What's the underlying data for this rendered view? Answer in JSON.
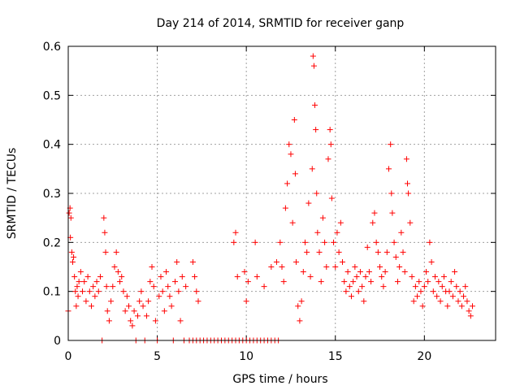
{
  "chart_data": {
    "type": "scatter",
    "title": "Day 214 of 2014, SRMTID for receiver ganp",
    "xlabel": "GPS time / hours",
    "ylabel": "SRMTID / TECUs",
    "xlim": [
      0,
      24
    ],
    "ylim": [
      0,
      0.6
    ],
    "x_ticks": [
      0,
      5,
      10,
      15,
      20
    ],
    "x_tick_labels": [
      "0",
      "5",
      "10",
      "15",
      "20"
    ],
    "y_ticks": [
      0,
      0.1,
      0.2,
      0.3,
      0.4,
      0.5,
      0.6
    ],
    "y_tick_labels": [
      "0",
      "0.1",
      "0.2",
      "0.3",
      "0.4",
      "0.5",
      "0.6"
    ],
    "grid": true,
    "marker": "+",
    "color": "#ff0000",
    "series": [
      {
        "name": "SRMTID",
        "points": [
          [
            0.0,
            0.06
          ],
          [
            0.05,
            0.26
          ],
          [
            0.1,
            0.27
          ],
          [
            0.12,
            0.21
          ],
          [
            0.15,
            0.25
          ],
          [
            0.2,
            0.18
          ],
          [
            0.25,
            0.16
          ],
          [
            0.3,
            0.17
          ],
          [
            0.35,
            0.13
          ],
          [
            0.4,
            0.1
          ],
          [
            0.45,
            0.07
          ],
          [
            0.5,
            0.11
          ],
          [
            0.55,
            0.09
          ],
          [
            0.6,
            0.12
          ],
          [
            0.7,
            0.14
          ],
          [
            0.8,
            0.1
          ],
          [
            0.9,
            0.12
          ],
          [
            1.0,
            0.08
          ],
          [
            1.1,
            0.13
          ],
          [
            1.2,
            0.1
          ],
          [
            1.3,
            0.07
          ],
          [
            1.4,
            0.11
          ],
          [
            1.5,
            0.09
          ],
          [
            1.6,
            0.12
          ],
          [
            1.7,
            0.1
          ],
          [
            1.8,
            0.13
          ],
          [
            1.9,
            0.0
          ],
          [
            2.0,
            0.25
          ],
          [
            2.05,
            0.22
          ],
          [
            2.1,
            0.18
          ],
          [
            2.15,
            0.11
          ],
          [
            2.2,
            0.06
          ],
          [
            2.3,
            0.04
          ],
          [
            2.4,
            0.08
          ],
          [
            2.5,
            0.11
          ],
          [
            2.6,
            0.15
          ],
          [
            2.7,
            0.18
          ],
          [
            2.8,
            0.14
          ],
          [
            2.9,
            0.12
          ],
          [
            3.0,
            0.13
          ],
          [
            3.1,
            0.1
          ],
          [
            3.2,
            0.06
          ],
          [
            3.3,
            0.09
          ],
          [
            3.4,
            0.07
          ],
          [
            3.5,
            0.04
          ],
          [
            3.6,
            0.03
          ],
          [
            3.7,
            0.06
          ],
          [
            3.8,
            0.0
          ],
          [
            3.9,
            0.05
          ],
          [
            4.0,
            0.08
          ],
          [
            4.1,
            0.1
          ],
          [
            4.2,
            0.07
          ],
          [
            4.3,
            0.0
          ],
          [
            4.4,
            0.05
          ],
          [
            4.5,
            0.08
          ],
          [
            4.6,
            0.12
          ],
          [
            4.7,
            0.15
          ],
          [
            4.8,
            0.11
          ],
          [
            4.9,
            0.04
          ],
          [
            5.0,
            0.0
          ],
          [
            5.1,
            0.09
          ],
          [
            5.2,
            0.13
          ],
          [
            5.3,
            0.1
          ],
          [
            5.4,
            0.06
          ],
          [
            5.5,
            0.14
          ],
          [
            5.6,
            0.11
          ],
          [
            5.7,
            0.09
          ],
          [
            5.8,
            0.07
          ],
          [
            5.9,
            0.0
          ],
          [
            6.0,
            0.12
          ],
          [
            6.1,
            0.16
          ],
          [
            6.2,
            0.1
          ],
          [
            6.3,
            0.04
          ],
          [
            6.4,
            0.13
          ],
          [
            6.5,
            0.0
          ],
          [
            6.6,
            0.11
          ],
          [
            6.8,
            0.0
          ],
          [
            7.0,
            0.0
          ],
          [
            7.2,
            0.0
          ],
          [
            7.4,
            0.0
          ],
          [
            7.0,
            0.16
          ],
          [
            7.1,
            0.13
          ],
          [
            7.2,
            0.1
          ],
          [
            7.3,
            0.08
          ],
          [
            7.6,
            0.0
          ],
          [
            7.8,
            0.0
          ],
          [
            8.0,
            0.0
          ],
          [
            8.2,
            0.0
          ],
          [
            8.4,
            0.0
          ],
          [
            8.6,
            0.0
          ],
          [
            8.8,
            0.0
          ],
          [
            9.0,
            0.0
          ],
          [
            9.2,
            0.0
          ],
          [
            9.4,
            0.0
          ],
          [
            9.6,
            0.0
          ],
          [
            9.8,
            0.0
          ],
          [
            10.0,
            0.0
          ],
          [
            10.2,
            0.0
          ],
          [
            10.4,
            0.0
          ],
          [
            10.6,
            0.0
          ],
          [
            10.8,
            0.0
          ],
          [
            11.0,
            0.0
          ],
          [
            11.2,
            0.0
          ],
          [
            11.4,
            0.0
          ],
          [
            11.6,
            0.0
          ],
          [
            11.8,
            0.0
          ],
          [
            9.3,
            0.2
          ],
          [
            9.4,
            0.22
          ],
          [
            9.5,
            0.13
          ],
          [
            9.9,
            0.14
          ],
          [
            10.0,
            0.08
          ],
          [
            10.1,
            0.12
          ],
          [
            10.5,
            0.2
          ],
          [
            10.6,
            0.13
          ],
          [
            11.0,
            0.11
          ],
          [
            11.4,
            0.15
          ],
          [
            11.7,
            0.16
          ],
          [
            11.9,
            0.2
          ],
          [
            12.0,
            0.15
          ],
          [
            12.1,
            0.12
          ],
          [
            12.2,
            0.27
          ],
          [
            12.3,
            0.32
          ],
          [
            12.4,
            0.4
          ],
          [
            12.5,
            0.38
          ],
          [
            12.6,
            0.24
          ],
          [
            12.7,
            0.45
          ],
          [
            12.75,
            0.34
          ],
          [
            12.8,
            0.16
          ],
          [
            12.9,
            0.07
          ],
          [
            13.0,
            0.04
          ],
          [
            13.1,
            0.08
          ],
          [
            13.2,
            0.14
          ],
          [
            13.3,
            0.2
          ],
          [
            13.4,
            0.18
          ],
          [
            13.5,
            0.28
          ],
          [
            13.6,
            0.13
          ],
          [
            13.7,
            0.35
          ],
          [
            13.75,
            0.58
          ],
          [
            13.8,
            0.56
          ],
          [
            13.85,
            0.48
          ],
          [
            13.9,
            0.43
          ],
          [
            13.95,
            0.3
          ],
          [
            14.0,
            0.22
          ],
          [
            14.1,
            0.18
          ],
          [
            14.2,
            0.12
          ],
          [
            14.3,
            0.25
          ],
          [
            14.4,
            0.2
          ],
          [
            14.5,
            0.15
          ],
          [
            14.6,
            0.37
          ],
          [
            14.7,
            0.43
          ],
          [
            14.75,
            0.4
          ],
          [
            14.8,
            0.29
          ],
          [
            14.9,
            0.2
          ],
          [
            15.0,
            0.15
          ],
          [
            15.1,
            0.22
          ],
          [
            15.2,
            0.18
          ],
          [
            15.3,
            0.24
          ],
          [
            15.4,
            0.16
          ],
          [
            15.5,
            0.12
          ],
          [
            15.6,
            0.1
          ],
          [
            15.7,
            0.14
          ],
          [
            15.8,
            0.11
          ],
          [
            15.9,
            0.09
          ],
          [
            16.0,
            0.12
          ],
          [
            16.1,
            0.15
          ],
          [
            16.2,
            0.13
          ],
          [
            16.3,
            0.1
          ],
          [
            16.4,
            0.14
          ],
          [
            16.5,
            0.11
          ],
          [
            16.6,
            0.08
          ],
          [
            16.7,
            0.13
          ],
          [
            16.8,
            0.19
          ],
          [
            16.9,
            0.14
          ],
          [
            17.0,
            0.12
          ],
          [
            17.1,
            0.24
          ],
          [
            17.2,
            0.26
          ],
          [
            17.3,
            0.2
          ],
          [
            17.4,
            0.18
          ],
          [
            17.5,
            0.15
          ],
          [
            17.6,
            0.13
          ],
          [
            17.7,
            0.11
          ],
          [
            17.8,
            0.14
          ],
          [
            17.9,
            0.18
          ],
          [
            18.0,
            0.35
          ],
          [
            18.1,
            0.4
          ],
          [
            18.15,
            0.3
          ],
          [
            18.2,
            0.26
          ],
          [
            18.3,
            0.2
          ],
          [
            18.4,
            0.17
          ],
          [
            18.5,
            0.12
          ],
          [
            18.6,
            0.15
          ],
          [
            18.7,
            0.22
          ],
          [
            18.8,
            0.18
          ],
          [
            18.9,
            0.14
          ],
          [
            19.0,
            0.37
          ],
          [
            19.05,
            0.32
          ],
          [
            19.1,
            0.3
          ],
          [
            19.2,
            0.24
          ],
          [
            19.3,
            0.13
          ],
          [
            19.4,
            0.08
          ],
          [
            19.5,
            0.11
          ],
          [
            19.6,
            0.09
          ],
          [
            19.7,
            0.12
          ],
          [
            19.8,
            0.1
          ],
          [
            19.9,
            0.07
          ],
          [
            20.0,
            0.11
          ],
          [
            20.1,
            0.14
          ],
          [
            20.2,
            0.12
          ],
          [
            20.3,
            0.2
          ],
          [
            20.4,
            0.16
          ],
          [
            20.5,
            0.1
          ],
          [
            20.6,
            0.13
          ],
          [
            20.7,
            0.09
          ],
          [
            20.8,
            0.12
          ],
          [
            20.9,
            0.08
          ],
          [
            21.0,
            0.11
          ],
          [
            21.1,
            0.13
          ],
          [
            21.2,
            0.1
          ],
          [
            21.3,
            0.07
          ],
          [
            21.4,
            0.1
          ],
          [
            21.5,
            0.12
          ],
          [
            21.6,
            0.09
          ],
          [
            21.7,
            0.14
          ],
          [
            21.8,
            0.11
          ],
          [
            21.9,
            0.08
          ],
          [
            22.0,
            0.1
          ],
          [
            22.1,
            0.07
          ],
          [
            22.2,
            0.09
          ],
          [
            22.3,
            0.11
          ],
          [
            22.4,
            0.08
          ],
          [
            22.5,
            0.06
          ],
          [
            22.6,
            0.05
          ],
          [
            22.7,
            0.07
          ]
        ]
      }
    ]
  }
}
